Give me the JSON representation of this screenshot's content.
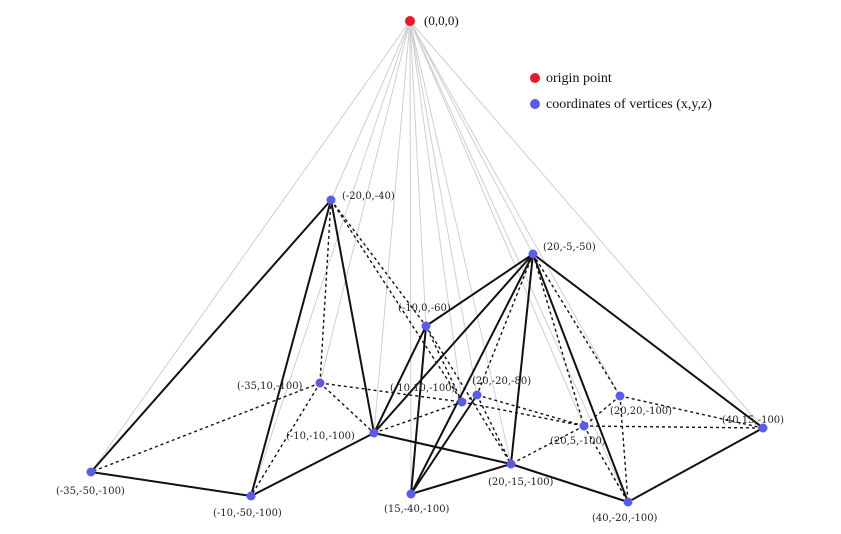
{
  "legend": {
    "origin_label": "origin point",
    "vertex_label": "coordinates of vertices (x,y,z)",
    "origin_color": "#e8192c",
    "vertex_color": "#5b5bea"
  },
  "origin": {
    "id": "O",
    "label": "(0,0,0)"
  },
  "vertices": [
    {
      "id": "A",
      "label": "(-20,0,-40)"
    },
    {
      "id": "B",
      "label": "(20,-5,-50)"
    },
    {
      "id": "C",
      "label": "(-10,0,-60)"
    },
    {
      "id": "D",
      "label": "(20,-20,-80)"
    },
    {
      "id": "E",
      "label": "(-35,10,-100)"
    },
    {
      "id": "F",
      "label": "(-10,10,-100)"
    },
    {
      "id": "G",
      "label": "(-10,-10,-100)"
    },
    {
      "id": "H",
      "label": "(20,20,-100)"
    },
    {
      "id": "I",
      "label": "(20,5,-100)"
    },
    {
      "id": "J",
      "label": "(40,15,-100)"
    },
    {
      "id": "K",
      "label": "(-35,-50,-100)"
    },
    {
      "id": "L",
      "label": "(-10,-50,-100)"
    },
    {
      "id": "M",
      "label": "(15,-40,-100)"
    },
    {
      "id": "N",
      "label": "(20,-15,-100)"
    },
    {
      "id": "P",
      "label": "(40,-20,-100)"
    }
  ],
  "solid_edges": [
    [
      "A",
      "K"
    ],
    [
      "A",
      "L"
    ],
    [
      "A",
      "G"
    ],
    [
      "K",
      "L"
    ],
    [
      "L",
      "G"
    ],
    [
      "G",
      "C"
    ],
    [
      "C",
      "M"
    ],
    [
      "C",
      "B"
    ],
    [
      "G",
      "B"
    ],
    [
      "M",
      "B"
    ],
    [
      "N",
      "B"
    ],
    [
      "P",
      "B"
    ],
    [
      "J",
      "B"
    ],
    [
      "M",
      "N"
    ],
    [
      "N",
      "P"
    ],
    [
      "P",
      "J"
    ],
    [
      "G",
      "N"
    ],
    [
      "M",
      "D"
    ]
  ],
  "dashed_edges": [
    [
      "A",
      "E"
    ],
    [
      "A",
      "C"
    ],
    [
      "A",
      "F"
    ],
    [
      "E",
      "K"
    ],
    [
      "E",
      "L"
    ],
    [
      "E",
      "F"
    ],
    [
      "E",
      "G"
    ],
    [
      "G",
      "F"
    ],
    [
      "F",
      "C"
    ],
    [
      "F",
      "I"
    ],
    [
      "C",
      "N"
    ],
    [
      "B",
      "D"
    ],
    [
      "B",
      "I"
    ],
    [
      "B",
      "H"
    ],
    [
      "D",
      "N"
    ],
    [
      "D",
      "I"
    ],
    [
      "D",
      "F"
    ],
    [
      "H",
      "I"
    ],
    [
      "H",
      "J"
    ],
    [
      "H",
      "P"
    ],
    [
      "I",
      "J"
    ],
    [
      "I",
      "P"
    ],
    [
      "I",
      "N"
    ]
  ]
}
